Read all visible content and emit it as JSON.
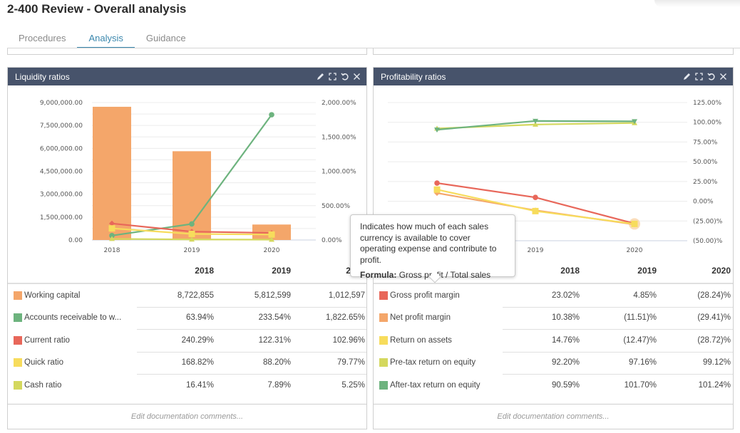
{
  "page": {
    "title": "2-400 Review - Overall analysis",
    "tabs": [
      {
        "label": "Procedures",
        "active": false
      },
      {
        "label": "Analysis",
        "active": true
      },
      {
        "label": "Guidance",
        "active": false
      }
    ]
  },
  "header_icons": [
    "pencil-icon",
    "expand-icon",
    "undo-icon",
    "close-icon"
  ],
  "liquidity": {
    "title": "Liquidity ratios",
    "years": [
      "2018",
      "2019",
      "2020"
    ],
    "rows": [
      {
        "name": "Working capital",
        "color": "#f4a66a",
        "values": [
          "8,722,855",
          "5,812,599",
          "1,012,597"
        ]
      },
      {
        "name": "Accounts receivable to w...",
        "color": "#6db37e",
        "values": [
          "63.94%",
          "233.54%",
          "1,822.65%"
        ]
      },
      {
        "name": "Current ratio",
        "color": "#e8675a",
        "values": [
          "240.29%",
          "122.31%",
          "102.96%"
        ]
      },
      {
        "name": "Quick ratio",
        "color": "#f7dc5c",
        "values": [
          "168.82%",
          "88.20%",
          "79.77%"
        ]
      },
      {
        "name": "Cash ratio",
        "color": "#d4d85e",
        "values": [
          "16.41%",
          "7.89%",
          "5.25%"
        ]
      }
    ],
    "comments_placeholder": "Edit documentation comments..."
  },
  "profitability": {
    "title": "Profitability ratios",
    "years": [
      "2018",
      "2019",
      "2020"
    ],
    "rows": [
      {
        "name": "Gross profit margin",
        "color": "#e8675a",
        "values": [
          "23.02%",
          "4.85%",
          "(28.24)%"
        ]
      },
      {
        "name": "Net profit margin",
        "color": "#f4a66a",
        "values": [
          "10.38%",
          "(11.51)%",
          "(29.41)%"
        ]
      },
      {
        "name": "Return on assets",
        "color": "#f7dc5c",
        "values": [
          "14.76%",
          "(12.47)%",
          "(28.72)%"
        ]
      },
      {
        "name": "Pre-tax return on equity",
        "color": "#d4d85e",
        "values": [
          "92.20%",
          "97.16%",
          "99.12%"
        ]
      },
      {
        "name": "After-tax return on equity",
        "color": "#6db37e",
        "values": [
          "90.59%",
          "101.70%",
          "101.24%"
        ]
      }
    ],
    "comments_placeholder": "Edit documentation comments..."
  },
  "tooltip": {
    "description": "Indicates how much of each sales currency is available to cover operating expense and contribute to profit.",
    "formula_label": "Formula:",
    "formula": "Gross profit / Total sales"
  },
  "chart_data": [
    {
      "type": "bar",
      "title": "Liquidity ratios",
      "categories": [
        "2018",
        "2019",
        "2020"
      ],
      "y_left": {
        "ylim": [
          0,
          9000000
        ],
        "ticks": [
          0,
          1500000,
          3000000,
          4500000,
          6000000,
          7500000,
          9000000
        ],
        "tick_labels": [
          "0.00",
          "1,500,000.00",
          "3,000,000.00",
          "4,500,000.00",
          "6,000,000.00",
          "7,500,000.00",
          "9,000,000.00"
        ]
      },
      "y_right": {
        "ylim": [
          0,
          2000
        ],
        "ticks": [
          0,
          500,
          1000,
          1500,
          2000
        ],
        "tick_labels": [
          "0.00%",
          "500.00%",
          "1,000.00%",
          "1,500.00%",
          "2,000.00%"
        ]
      },
      "grid": true,
      "series": [
        {
          "name": "Working capital",
          "kind": "bar",
          "axis": "left",
          "color": "#f4a66a",
          "values": [
            8722855,
            5812599,
            1012597
          ]
        },
        {
          "name": "Accounts receivable to working capital",
          "kind": "line",
          "axis": "right",
          "marker": "circle",
          "color": "#6db37e",
          "values": [
            63.94,
            233.54,
            1822.65
          ]
        },
        {
          "name": "Current ratio",
          "kind": "line",
          "axis": "right",
          "marker": "diamond",
          "color": "#e8675a",
          "values": [
            240.29,
            122.31,
            102.96
          ]
        },
        {
          "name": "Quick ratio",
          "kind": "line",
          "axis": "right",
          "marker": "square",
          "color": "#f7dc5c",
          "values": [
            168.82,
            88.2,
            79.77
          ]
        },
        {
          "name": "Cash ratio",
          "kind": "line",
          "axis": "right",
          "marker": "triangle",
          "color": "#d4d85e",
          "values": [
            16.41,
            7.89,
            5.25
          ]
        }
      ]
    },
    {
      "type": "line",
      "title": "Profitability ratios",
      "categories": [
        "2018",
        "2019",
        "2020"
      ],
      "y_right": {
        "ylim": [
          -50,
          125
        ],
        "ticks": [
          -50,
          -25,
          0,
          25,
          50,
          75,
          100,
          125
        ],
        "tick_labels": [
          "(50.00)%",
          "(25.00)%",
          "0.00%",
          "25.00%",
          "50.00%",
          "75.00%",
          "100.00%",
          "125.00%"
        ]
      },
      "grid": true,
      "series": [
        {
          "name": "Gross profit margin",
          "marker": "circle",
          "color": "#e8675a",
          "values": [
            23.02,
            4.85,
            -28.24
          ]
        },
        {
          "name": "Net profit margin",
          "marker": "diamond",
          "color": "#f4a66a",
          "values": [
            10.38,
            -11.51,
            -29.41
          ]
        },
        {
          "name": "Return on assets",
          "marker": "square",
          "color": "#f7dc5c",
          "values": [
            14.76,
            -12.47,
            -28.72
          ]
        },
        {
          "name": "Pre-tax return on equity",
          "marker": "triangle",
          "color": "#d4d85e",
          "values": [
            92.2,
            97.16,
            99.12
          ]
        },
        {
          "name": "After-tax return on equity",
          "marker": "triangle-down",
          "color": "#6db37e",
          "values": [
            90.59,
            101.7,
            101.24
          ]
        }
      ],
      "highlighted_point": {
        "series": "Return on assets",
        "category": "2020"
      }
    }
  ]
}
